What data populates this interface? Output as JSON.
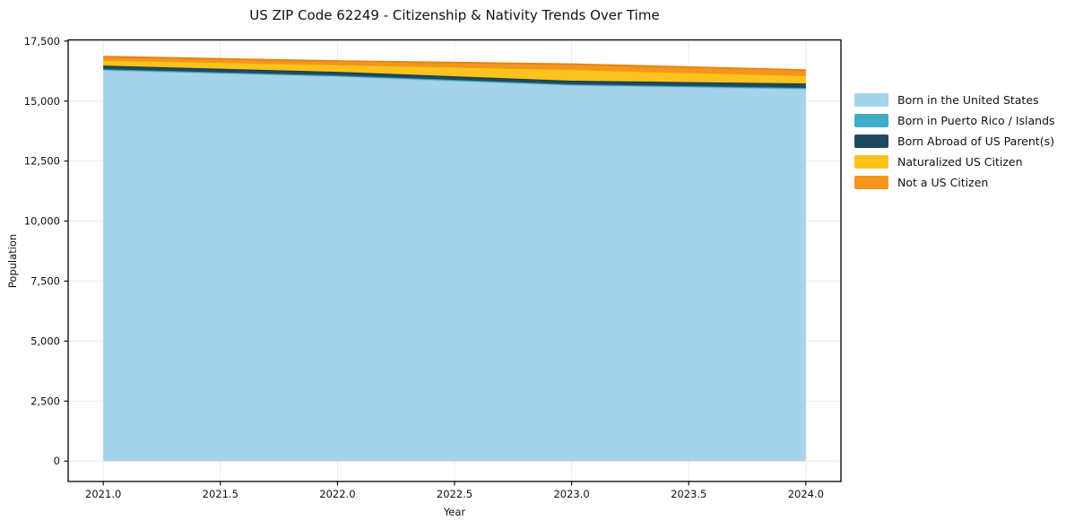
{
  "chart": {
    "title": "US ZIP Code 62249 - Citizenship & Nativity Trends Over Time",
    "xlabel": "Year",
    "ylabel": "Population"
  },
  "chart_data": {
    "type": "area",
    "stacked": true,
    "title": "US ZIP Code 62249 - Citizenship & Nativity Trends Over Time",
    "xlabel": "Year",
    "ylabel": "Population",
    "x": [
      2021,
      2022,
      2023,
      2024
    ],
    "series": [
      {
        "name": "Born in the United States",
        "color": "#a5d3ea",
        "edge_color": "#8cc3de",
        "values": [
          16290,
          16030,
          15660,
          15510
        ]
      },
      {
        "name": "Born in Puerto Rico / Islands",
        "color": "#41acc8",
        "edge_color": "#3198b4",
        "values": [
          40,
          40,
          40,
          40
        ]
      },
      {
        "name": "Born Abroad of US Parent(s)",
        "color": "#1f4a5e",
        "edge_color": "#16394a",
        "values": [
          150,
          150,
          150,
          185
        ]
      },
      {
        "name": "Naturalized US Citizen",
        "color": "#fcc21d",
        "edge_color": "#eda512",
        "values": [
          225,
          300,
          470,
          330
        ]
      },
      {
        "name": "Not a US Citizen",
        "color": "#f5941f",
        "edge_color": "#e5820d",
        "values": [
          150,
          150,
          220,
          230
        ]
      }
    ],
    "x_ticks": {
      "values": [
        2021.0,
        2021.5,
        2022.0,
        2022.5,
        2023.0,
        2023.5,
        2024.0
      ],
      "labels": [
        "2021.0",
        "2021.5",
        "2022.0",
        "2022.5",
        "2023.0",
        "2023.5",
        "2024.0"
      ]
    },
    "y_ticks": {
      "values": [
        0,
        2500,
        5000,
        7500,
        10000,
        12500,
        15000,
        17500
      ],
      "labels": [
        "0",
        "2,500",
        "5,000",
        "7,500",
        "10,000",
        "12,500",
        "15,000",
        "17,500"
      ]
    },
    "xlim": [
      2020.85,
      2024.15
    ],
    "ylim": [
      -850,
      17550
    ],
    "grid": true,
    "grid_color": "#ebebeb",
    "frame_color": "#000000",
    "tick_color": "#000000",
    "text_color": "#111111",
    "background": "#ffffff",
    "legend_position": "right-outside"
  }
}
